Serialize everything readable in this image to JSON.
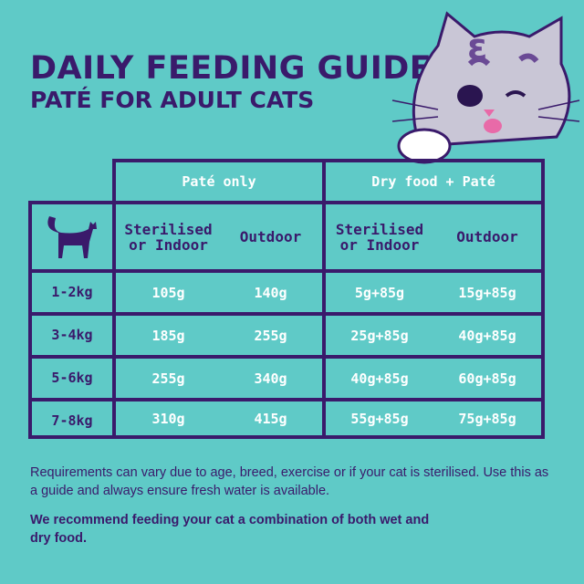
{
  "title": "DAILY FEEDING GUIDE",
  "subtitle": "PATÉ FOR ADULT CATS",
  "table": {
    "groups": [
      "Paté only",
      "Dry food + Paté"
    ],
    "subheaders": [
      "Sterilised or Indoor",
      "Outdoor",
      "Sterilised or Indoor",
      "Outdoor"
    ],
    "rows": [
      {
        "weight": "1-2kg",
        "values": [
          "105g",
          "140g",
          "5g+85g",
          "15g+85g"
        ]
      },
      {
        "weight": "3-4kg",
        "values": [
          "185g",
          "255g",
          "25g+85g",
          "40g+85g"
        ]
      },
      {
        "weight": "5-6kg",
        "values": [
          "255g",
          "340g",
          "40g+85g",
          "60g+85g"
        ]
      },
      {
        "weight": "7-8kg",
        "values": [
          "310g",
          "415g",
          "55g+85g",
          "75g+85g"
        ]
      }
    ]
  },
  "note": "Requirements can vary due to age, breed, exercise or if your cat is sterilised. Use this as a guide and always ensure fresh water is available.",
  "recommendation": "We recommend feeding your cat a combination of both wet and dry food.",
  "colors": {
    "background": "#5fcac7",
    "primary": "#3a1a6b",
    "text_light": "#ffffff"
  },
  "icons": [
    "cat-silhouette-icon",
    "cat-mascot-illustration"
  ]
}
